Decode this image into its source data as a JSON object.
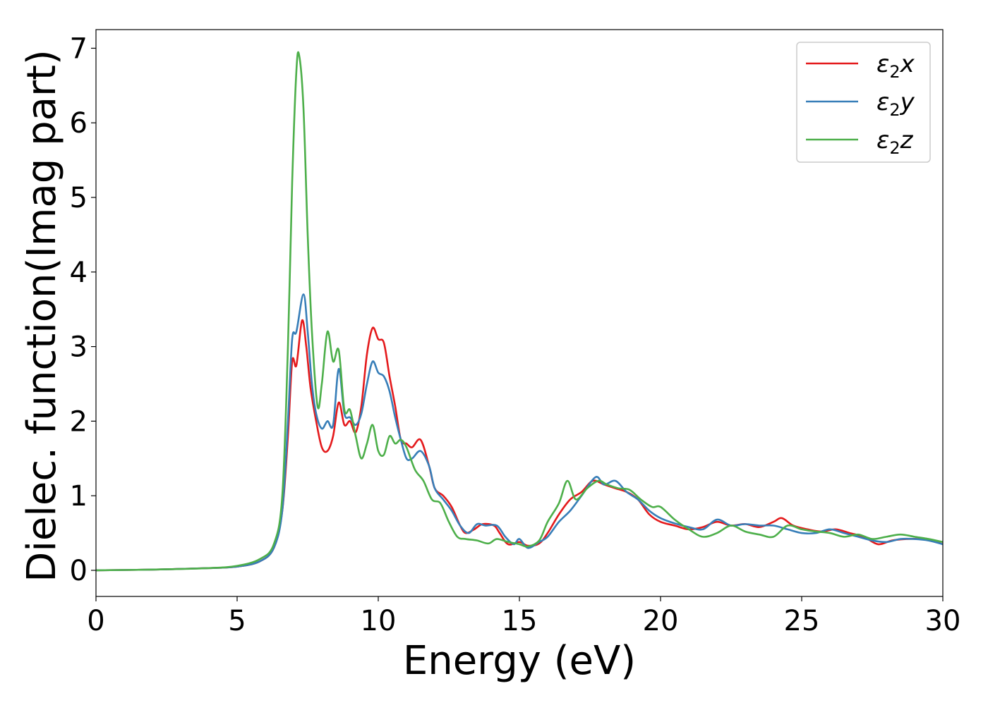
{
  "chart_data": {
    "type": "line",
    "title": "",
    "xlabel": "Energy (eV)",
    "ylabel": "Dielec. function(Imag part)",
    "xlim": [
      0,
      30
    ],
    "ylim": [
      -0.35,
      7.25
    ],
    "xticks": [
      0,
      5,
      10,
      15,
      20,
      25,
      30
    ],
    "yticks": [
      0,
      1,
      2,
      3,
      4,
      5,
      6,
      7
    ],
    "grid": false,
    "legend_position": "top-right",
    "series": [
      {
        "name": "ε₂x",
        "legend_main": "ε",
        "legend_sub": "2",
        "legend_tail": "x",
        "color": "#e41a1c",
        "points": [
          [
            0,
            0
          ],
          [
            2,
            0.01
          ],
          [
            4,
            0.03
          ],
          [
            5,
            0.05
          ],
          [
            5.8,
            0.12
          ],
          [
            6.3,
            0.3
          ],
          [
            6.6,
            0.8
          ],
          [
            6.8,
            1.8
          ],
          [
            6.95,
            2.8
          ],
          [
            7.1,
            2.75
          ],
          [
            7.3,
            3.35
          ],
          [
            7.45,
            3.0
          ],
          [
            7.6,
            2.45
          ],
          [
            7.8,
            2.0
          ],
          [
            8.0,
            1.65
          ],
          [
            8.2,
            1.6
          ],
          [
            8.4,
            1.8
          ],
          [
            8.6,
            2.25
          ],
          [
            8.8,
            1.95
          ],
          [
            9.0,
            2.0
          ],
          [
            9.2,
            1.85
          ],
          [
            9.4,
            2.2
          ],
          [
            9.6,
            2.9
          ],
          [
            9.8,
            3.25
          ],
          [
            10.0,
            3.1
          ],
          [
            10.2,
            3.05
          ],
          [
            10.4,
            2.6
          ],
          [
            10.6,
            2.2
          ],
          [
            10.8,
            1.75
          ],
          [
            11.0,
            1.7
          ],
          [
            11.2,
            1.65
          ],
          [
            11.5,
            1.75
          ],
          [
            11.8,
            1.4
          ],
          [
            12.0,
            1.1
          ],
          [
            12.3,
            1.0
          ],
          [
            12.6,
            0.85
          ],
          [
            12.9,
            0.6
          ],
          [
            13.1,
            0.5
          ],
          [
            13.4,
            0.55
          ],
          [
            13.7,
            0.62
          ],
          [
            14.1,
            0.6
          ],
          [
            14.3,
            0.5
          ],
          [
            14.6,
            0.35
          ],
          [
            15.0,
            0.38
          ],
          [
            15.3,
            0.33
          ],
          [
            15.7,
            0.36
          ],
          [
            16.0,
            0.5
          ],
          [
            16.4,
            0.75
          ],
          [
            16.8,
            0.95
          ],
          [
            17.2,
            1.05
          ],
          [
            17.6,
            1.2
          ],
          [
            18.0,
            1.15
          ],
          [
            18.4,
            1.1
          ],
          [
            18.8,
            1.05
          ],
          [
            19.2,
            0.95
          ],
          [
            19.6,
            0.75
          ],
          [
            20.0,
            0.65
          ],
          [
            20.5,
            0.6
          ],
          [
            21.0,
            0.55
          ],
          [
            21.5,
            0.58
          ],
          [
            22.0,
            0.65
          ],
          [
            22.5,
            0.6
          ],
          [
            23.0,
            0.62
          ],
          [
            23.5,
            0.58
          ],
          [
            24.0,
            0.65
          ],
          [
            24.3,
            0.7
          ],
          [
            24.7,
            0.6
          ],
          [
            25.2,
            0.55
          ],
          [
            25.7,
            0.52
          ],
          [
            26.2,
            0.55
          ],
          [
            26.7,
            0.5
          ],
          [
            27.2,
            0.45
          ],
          [
            27.7,
            0.35
          ],
          [
            28.2,
            0.4
          ],
          [
            28.7,
            0.42
          ],
          [
            29.2,
            0.42
          ],
          [
            29.6,
            0.4
          ],
          [
            30.0,
            0.35
          ]
        ]
      },
      {
        "name": "ε₂y",
        "legend_main": "ε",
        "legend_sub": "2",
        "legend_tail": "y",
        "color": "#377eb8",
        "points": [
          [
            0,
            0
          ],
          [
            2,
            0.01
          ],
          [
            4,
            0.03
          ],
          [
            5,
            0.05
          ],
          [
            5.8,
            0.12
          ],
          [
            6.3,
            0.3
          ],
          [
            6.6,
            0.8
          ],
          [
            6.8,
            2.0
          ],
          [
            6.95,
            3.1
          ],
          [
            7.1,
            3.2
          ],
          [
            7.35,
            3.7
          ],
          [
            7.5,
            3.2
          ],
          [
            7.65,
            2.5
          ],
          [
            7.8,
            2.1
          ],
          [
            8.0,
            1.9
          ],
          [
            8.2,
            2.0
          ],
          [
            8.4,
            1.95
          ],
          [
            8.6,
            2.7
          ],
          [
            8.8,
            2.1
          ],
          [
            9.0,
            2.05
          ],
          [
            9.2,
            1.95
          ],
          [
            9.4,
            2.1
          ],
          [
            9.6,
            2.5
          ],
          [
            9.8,
            2.8
          ],
          [
            10.0,
            2.65
          ],
          [
            10.2,
            2.6
          ],
          [
            10.4,
            2.4
          ],
          [
            10.6,
            2.05
          ],
          [
            10.8,
            1.75
          ],
          [
            11.0,
            1.5
          ],
          [
            11.2,
            1.5
          ],
          [
            11.5,
            1.6
          ],
          [
            11.8,
            1.4
          ],
          [
            12.0,
            1.1
          ],
          [
            12.3,
            0.95
          ],
          [
            12.6,
            0.8
          ],
          [
            12.9,
            0.6
          ],
          [
            13.2,
            0.5
          ],
          [
            13.5,
            0.62
          ],
          [
            13.8,
            0.6
          ],
          [
            14.2,
            0.6
          ],
          [
            14.5,
            0.45
          ],
          [
            14.8,
            0.35
          ],
          [
            15.0,
            0.42
          ],
          [
            15.3,
            0.3
          ],
          [
            15.7,
            0.38
          ],
          [
            16.0,
            0.45
          ],
          [
            16.4,
            0.65
          ],
          [
            16.8,
            0.8
          ],
          [
            17.2,
            1.0
          ],
          [
            17.7,
            1.25
          ],
          [
            18.0,
            1.15
          ],
          [
            18.4,
            1.2
          ],
          [
            18.8,
            1.05
          ],
          [
            19.2,
            0.95
          ],
          [
            19.6,
            0.8
          ],
          [
            20.0,
            0.7
          ],
          [
            20.5,
            0.63
          ],
          [
            21.0,
            0.58
          ],
          [
            21.5,
            0.55
          ],
          [
            22.0,
            0.68
          ],
          [
            22.5,
            0.6
          ],
          [
            23.0,
            0.62
          ],
          [
            23.5,
            0.6
          ],
          [
            24.0,
            0.6
          ],
          [
            24.5,
            0.55
          ],
          [
            25.0,
            0.5
          ],
          [
            25.5,
            0.5
          ],
          [
            26.0,
            0.55
          ],
          [
            26.5,
            0.5
          ],
          [
            27.0,
            0.45
          ],
          [
            27.5,
            0.4
          ],
          [
            28.0,
            0.38
          ],
          [
            28.5,
            0.42
          ],
          [
            29.0,
            0.42
          ],
          [
            29.5,
            0.4
          ],
          [
            30.0,
            0.35
          ]
        ]
      },
      {
        "name": "ε₂z",
        "legend_main": "ε",
        "legend_sub": "2",
        "legend_tail": "z",
        "color": "#4daf4a",
        "points": [
          [
            0,
            0
          ],
          [
            2,
            0.01
          ],
          [
            4,
            0.03
          ],
          [
            5,
            0.06
          ],
          [
            5.8,
            0.15
          ],
          [
            6.3,
            0.35
          ],
          [
            6.6,
            1.0
          ],
          [
            6.8,
            3.0
          ],
          [
            6.95,
            5.2
          ],
          [
            7.1,
            6.7
          ],
          [
            7.2,
            6.9
          ],
          [
            7.35,
            6.2
          ],
          [
            7.5,
            4.5
          ],
          [
            7.65,
            3.2
          ],
          [
            7.85,
            2.2
          ],
          [
            8.0,
            2.5
          ],
          [
            8.2,
            3.2
          ],
          [
            8.4,
            2.8
          ],
          [
            8.6,
            2.95
          ],
          [
            8.8,
            2.15
          ],
          [
            9.0,
            2.15
          ],
          [
            9.2,
            1.8
          ],
          [
            9.4,
            1.5
          ],
          [
            9.6,
            1.7
          ],
          [
            9.8,
            1.95
          ],
          [
            10.0,
            1.6
          ],
          [
            10.2,
            1.55
          ],
          [
            10.4,
            1.8
          ],
          [
            10.6,
            1.7
          ],
          [
            10.8,
            1.75
          ],
          [
            11.0,
            1.65
          ],
          [
            11.3,
            1.35
          ],
          [
            11.6,
            1.2
          ],
          [
            11.9,
            0.95
          ],
          [
            12.2,
            0.9
          ],
          [
            12.5,
            0.65
          ],
          [
            12.8,
            0.45
          ],
          [
            13.1,
            0.42
          ],
          [
            13.5,
            0.4
          ],
          [
            13.9,
            0.36
          ],
          [
            14.2,
            0.42
          ],
          [
            14.6,
            0.38
          ],
          [
            15.0,
            0.35
          ],
          [
            15.3,
            0.32
          ],
          [
            15.7,
            0.4
          ],
          [
            16.0,
            0.65
          ],
          [
            16.4,
            0.9
          ],
          [
            16.7,
            1.2
          ],
          [
            17.0,
            0.95
          ],
          [
            17.4,
            1.1
          ],
          [
            17.8,
            1.2
          ],
          [
            18.1,
            1.15
          ],
          [
            18.5,
            1.1
          ],
          [
            18.9,
            1.08
          ],
          [
            19.3,
            0.95
          ],
          [
            19.7,
            0.85
          ],
          [
            20.0,
            0.85
          ],
          [
            20.5,
            0.68
          ],
          [
            21.0,
            0.55
          ],
          [
            21.5,
            0.45
          ],
          [
            22.0,
            0.5
          ],
          [
            22.5,
            0.6
          ],
          [
            23.0,
            0.52
          ],
          [
            23.5,
            0.48
          ],
          [
            24.0,
            0.45
          ],
          [
            24.5,
            0.6
          ],
          [
            25.0,
            0.55
          ],
          [
            25.5,
            0.52
          ],
          [
            26.0,
            0.5
          ],
          [
            26.5,
            0.45
          ],
          [
            27.0,
            0.48
          ],
          [
            27.5,
            0.42
          ],
          [
            28.0,
            0.45
          ],
          [
            28.5,
            0.48
          ],
          [
            29.0,
            0.45
          ],
          [
            29.5,
            0.42
          ],
          [
            30.0,
            0.38
          ]
        ]
      }
    ]
  }
}
